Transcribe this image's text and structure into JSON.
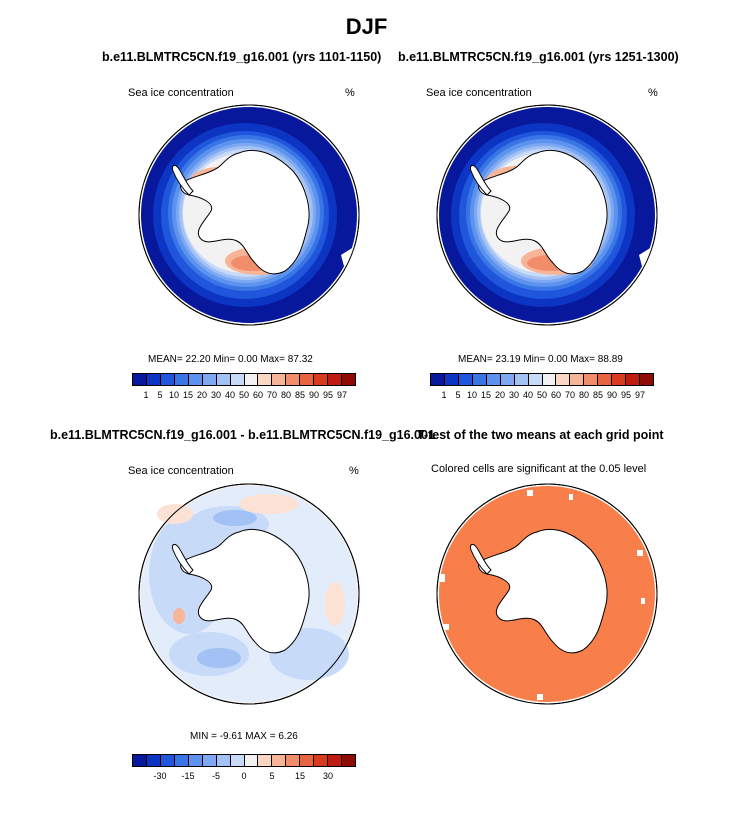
{
  "title": "DJF",
  "panels": [
    {
      "title": "b.e11.BLMTRC5CN.f19_g16.001 (yrs 1101-1150)",
      "variable": "Sea ice concentration",
      "units": "%",
      "stats": "MEAN=  22.20  Min=   0.00  Max=  87.32",
      "mean": 22.2,
      "min": 0.0,
      "max": 87.32
    },
    {
      "title": "b.e11.BLMTRC5CN.f19_g16.001 (yrs 1251-1300)",
      "variable": "Sea ice concentration",
      "units": "%",
      "stats": "MEAN=  23.19  Min=   0.00  Max=  88.89",
      "mean": 23.19,
      "min": 0.0,
      "max": 88.89
    },
    {
      "title": "b.e11.BLMTRC5CN.f19_g16.001 - b.e11.BLMTRC5CN.f19_g16.001",
      "variable": "Sea ice concentration",
      "units": "%",
      "stats": "MIN =  -9.61  MAX =   6.26",
      "min": -9.61,
      "max": 6.26
    },
    {
      "title": "T-test of the two means at each grid point",
      "subtitle": "Colored cells are significant at the 0.05 level"
    }
  ],
  "colorbar_abs": {
    "labels": [
      "1",
      "5",
      "10",
      "15",
      "20",
      "30",
      "40",
      "50",
      "60",
      "70",
      "80",
      "85",
      "90",
      "95",
      "97"
    ],
    "colors": [
      "#08189c",
      "#0c35c4",
      "#1f56db",
      "#3a75e6",
      "#5b93ee",
      "#7ea9f2",
      "#a2c1f4",
      "#c7daf7",
      "#f2f2f2",
      "#fbd6c3",
      "#f8b497",
      "#f28d6c",
      "#e8633f",
      "#d93b1f",
      "#c01b10",
      "#8f0b05"
    ]
  },
  "colorbar_diff": {
    "labels": [
      "-30",
      "-15",
      "-5",
      "0",
      "5",
      "15",
      "30"
    ],
    "colors": [
      "#08189c",
      "#0c35c4",
      "#1f56db",
      "#3a75e6",
      "#5b93ee",
      "#7ea9f2",
      "#a2c1f4",
      "#c7daf7",
      "#f2f2f2",
      "#fbd6c3",
      "#f8b497",
      "#f28d6c",
      "#e8633f",
      "#d93b1f",
      "#c01b10",
      "#8f0b05"
    ]
  },
  "colors": {
    "ocean_ice_low": "#08189c",
    "significant": "#f97f4a",
    "land": "#ffffff"
  }
}
